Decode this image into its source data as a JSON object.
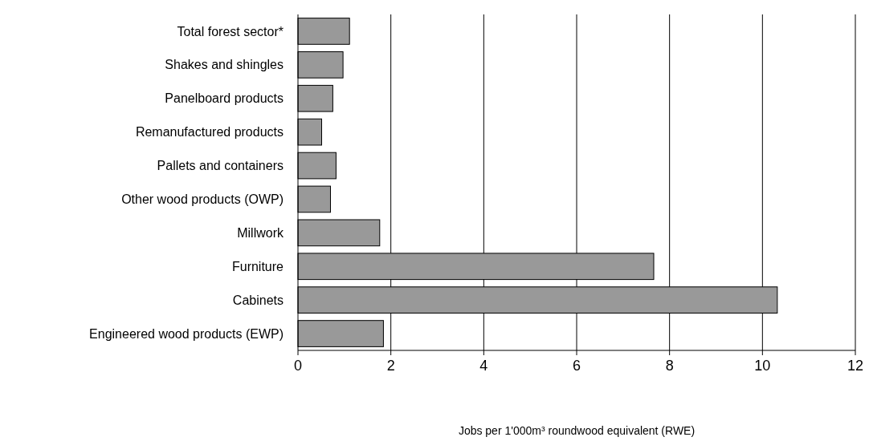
{
  "chart_data": {
    "type": "bar",
    "orientation": "horizontal",
    "categories": [
      "Total forest sector*",
      "Shakes and shingles",
      "Panelboard products",
      "Remanufactured products",
      "Pallets and containers",
      "Other wood products (OWP)",
      "Millwork",
      "Furniture",
      "Cabinets",
      "Engineered wood products (EWP)"
    ],
    "values": [
      1.11,
      0.97,
      0.75,
      0.51,
      0.82,
      0.7,
      1.76,
      7.66,
      10.32,
      1.84
    ],
    "color": "#999999",
    "xlim": [
      0,
      12
    ],
    "xticks": [
      0,
      2,
      4,
      6,
      8,
      10,
      12
    ],
    "grid": "x",
    "xlabel": "Jobs per 1'000m³ roundwood equivalent (RWE)"
  }
}
